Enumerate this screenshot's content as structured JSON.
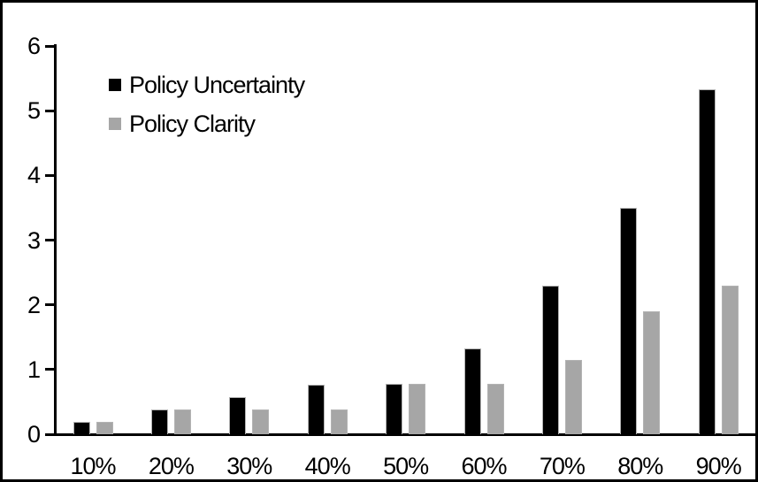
{
  "chart_data": {
    "type": "bar",
    "title": "",
    "xlabel": "",
    "ylabel": "",
    "categories": [
      "10%",
      "20%",
      "30%",
      "40%",
      "50%",
      "60%",
      "70%",
      "80%",
      "90%"
    ],
    "series": [
      {
        "name": "Policy Uncertainty",
        "color": "#000000",
        "values": [
          0.19,
          0.38,
          0.57,
          0.76,
          0.78,
          1.33,
          2.3,
          3.5,
          5.33
        ]
      },
      {
        "name": "Policy Clarity",
        "color": "#a6a6a6",
        "values": [
          0.19,
          0.38,
          0.38,
          0.38,
          0.78,
          0.78,
          1.15,
          1.9,
          2.3
        ]
      }
    ],
    "ylim": [
      0,
      6
    ],
    "yticks": [
      0,
      1,
      2,
      3,
      4,
      5,
      6
    ],
    "grid": false,
    "legend_position": "top-left-inside",
    "axis_color": "#000000",
    "bar_border_color": "#b3b3b3",
    "background_color": "#ffffff",
    "frame_border_color": "#000000"
  }
}
